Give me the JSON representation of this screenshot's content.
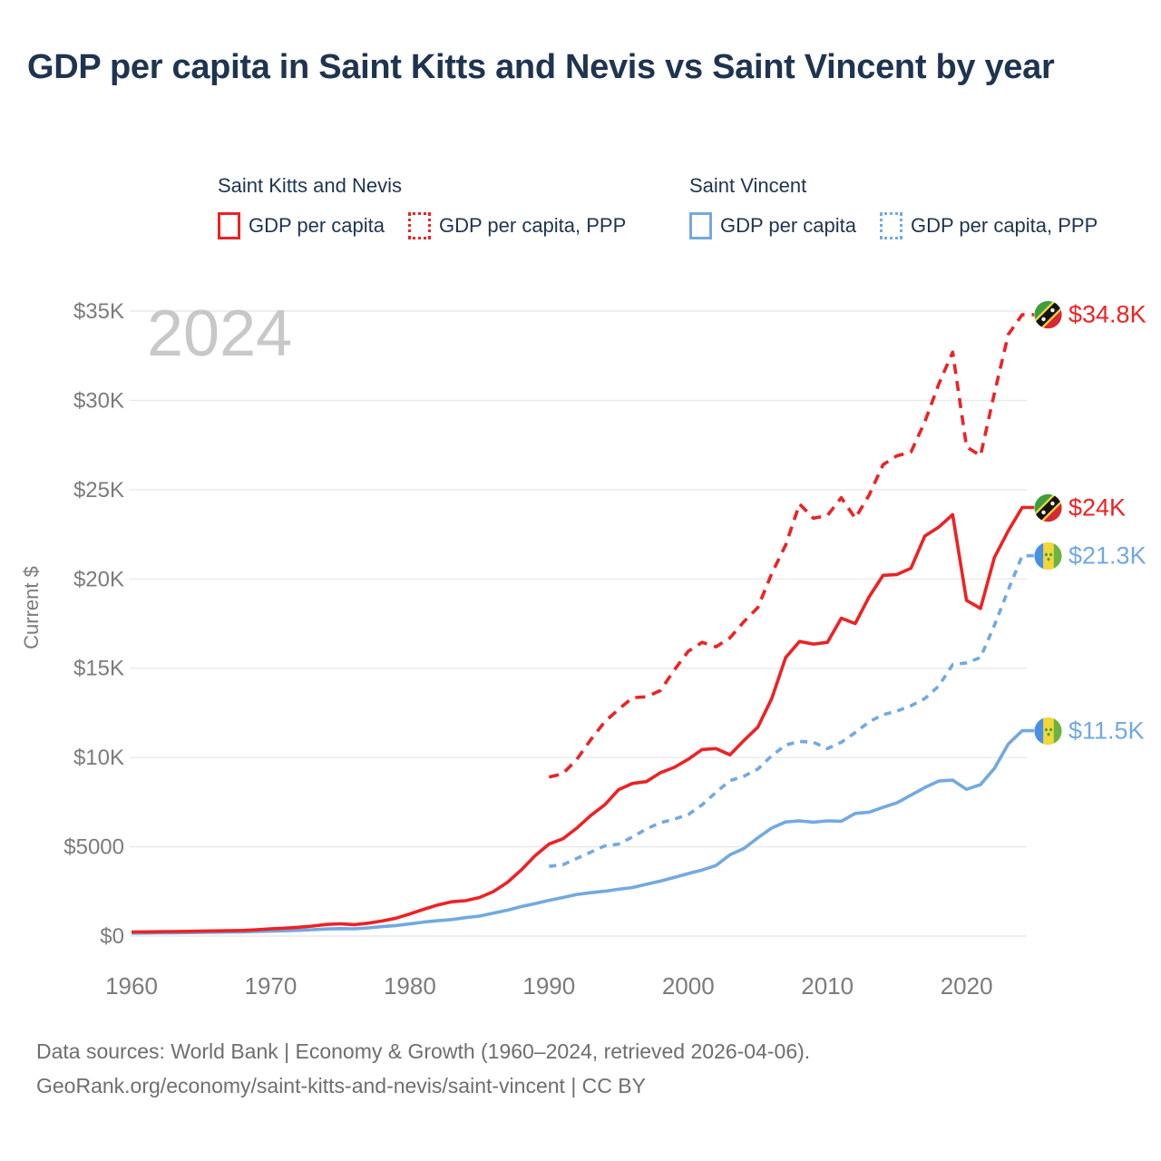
{
  "title": "GDP per capita in Saint Kitts and Nevis vs Saint Vincent by year",
  "watermark": "2024",
  "colors": {
    "red": "#ed2224",
    "blue": "#72a9e0",
    "navy": "#1e3450"
  },
  "legend": {
    "groups": [
      {
        "heading": "Saint Kitts and Nevis",
        "items": [
          {
            "label": "GDP per capita",
            "color": "red",
            "style": "solid"
          },
          {
            "label": "GDP per capita, PPP",
            "color": "red",
            "style": "dotted"
          }
        ]
      },
      {
        "heading": "Saint Vincent",
        "items": [
          {
            "label": "GDP per capita",
            "color": "blue",
            "style": "solid"
          },
          {
            "label": "GDP per capita, PPP",
            "color": "blue",
            "style": "dotted"
          }
        ]
      }
    ]
  },
  "chart_data": {
    "type": "line",
    "title": "GDP per capita in Saint Kitts and Nevis vs Saint Vincent by year",
    "x_axis": {
      "range": [
        1960,
        2024
      ],
      "ticks": [
        {
          "label": "1960",
          "year": 1960
        },
        {
          "label": "1970",
          "year": 1970
        },
        {
          "label": "1980",
          "year": 1980
        },
        {
          "label": "1990",
          "year": 1990
        },
        {
          "label": "2000",
          "year": 2000
        },
        {
          "label": "2010",
          "year": 2010
        },
        {
          "label": "2020",
          "year": 2020
        }
      ]
    },
    "y_axis": {
      "title": "Current $",
      "range": [
        0,
        35000
      ],
      "ticks": [
        {
          "label": "$0",
          "value": 0
        },
        {
          "label": "$5000",
          "value": 5000
        },
        {
          "label": "$10K",
          "value": 10000
        },
        {
          "label": "$15K",
          "value": 15000
        },
        {
          "label": "$20K",
          "value": 20000
        },
        {
          "label": "$25K",
          "value": 25000
        },
        {
          "label": "$30K",
          "value": 30000
        },
        {
          "label": "$35K",
          "value": 35000
        }
      ]
    },
    "grid": true,
    "legend_position": "top",
    "series": [
      {
        "name": "Saint Kitts and Nevis",
        "metric": "GDP per capita",
        "color": "red",
        "dash": "solid",
        "start_year": 1960,
        "end_value_label": "$24K",
        "values": [
          230,
          236,
          243,
          252,
          263,
          276,
          289,
          301,
          316,
          352,
          400,
          441,
          492,
          558,
          648,
          688,
          642,
          722,
          843,
          1003,
          1240,
          1500,
          1740,
          1920,
          1980,
          2160,
          2490,
          3000,
          3700,
          4500,
          5150,
          5450,
          6050,
          6750,
          7350,
          8200,
          8550,
          8650,
          9150,
          9450,
          9900,
          10450,
          10500,
          10150,
          10950,
          11700,
          13300,
          15600,
          16500,
          16350,
          16450,
          17800,
          17500,
          19000,
          20200,
          20250,
          20600,
          22400,
          22900,
          23600,
          18800,
          18350,
          21200,
          22700,
          24000
        ]
      },
      {
        "name": "Saint Kitts and Nevis",
        "metric": "GDP per capita, PPP",
        "color": "red",
        "dash": "dashed",
        "start_year": 1990,
        "end_value_label": "$34.8K",
        "values": [
          8900,
          9100,
          9900,
          11000,
          12000,
          12700,
          13350,
          13400,
          13750,
          14900,
          15950,
          16450,
          16200,
          16700,
          17600,
          18400,
          20300,
          21900,
          24200,
          23400,
          23550,
          24550,
          23400,
          24700,
          26400,
          26900,
          27100,
          28800,
          30900,
          32700,
          27400,
          26900,
          30400,
          33700,
          34800
        ]
      },
      {
        "name": "Saint Vincent",
        "metric": "GDP per capita",
        "color": "blue",
        "dash": "solid",
        "start_year": 1960,
        "end_value_label": "$11.5K",
        "values": [
          165,
          170,
          176,
          183,
          192,
          203,
          214,
          224,
          236,
          254,
          275,
          295,
          320,
          355,
          395,
          415,
          405,
          455,
          530,
          590,
          680,
          780,
          860,
          925,
          1030,
          1120,
          1280,
          1450,
          1650,
          1820,
          2000,
          2160,
          2330,
          2430,
          2510,
          2620,
          2720,
          2900,
          3080,
          3280,
          3500,
          3700,
          3950,
          4550,
          4900,
          5500,
          6050,
          6390,
          6450,
          6380,
          6450,
          6430,
          6870,
          6940,
          7210,
          7460,
          7890,
          8320,
          8680,
          8730,
          8220,
          8480,
          9390,
          10760,
          11500
        ]
      },
      {
        "name": "Saint Vincent",
        "metric": "GDP per capita, PPP",
        "color": "blue",
        "dash": "dashed",
        "start_year": 1990,
        "end_value_label": "$21.3K",
        "values": [
          3900,
          4000,
          4350,
          4700,
          5050,
          5150,
          5550,
          6000,
          6350,
          6550,
          6800,
          7350,
          8050,
          8700,
          8950,
          9350,
          10100,
          10700,
          10900,
          10850,
          10500,
          10850,
          11400,
          12000,
          12400,
          12600,
          12900,
          13300,
          14000,
          15200,
          15300,
          15600,
          17400,
          19400,
          21300
        ]
      }
    ]
  },
  "end_labels": [
    {
      "label": "$34.8K",
      "series_index": 1,
      "flag": "saint-kitts-and-nevis",
      "color": "red"
    },
    {
      "label": "$24K",
      "series_index": 0,
      "flag": "saint-kitts-and-nevis",
      "color": "red"
    },
    {
      "label": "$21.3K",
      "series_index": 3,
      "flag": "saint-vincent",
      "color": "blue"
    },
    {
      "label": "$11.5K",
      "series_index": 2,
      "flag": "saint-vincent",
      "color": "blue"
    }
  ],
  "footer": {
    "line1": "Data sources: World Bank | Economy & Growth (1960–2024, retrieved 2026-04-06).",
    "line2": "GeoRank.org/economy/saint-kitts-and-nevis/saint-vincent | CC BY"
  }
}
